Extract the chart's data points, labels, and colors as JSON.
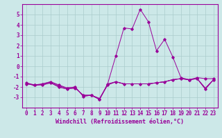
{
  "xlabel": "Windchill (Refroidissement éolien,°C)",
  "x_values": [
    0,
    1,
    2,
    3,
    4,
    5,
    6,
    7,
    8,
    9,
    10,
    11,
    12,
    13,
    14,
    15,
    16,
    17,
    18,
    19,
    20,
    21,
    22,
    23
  ],
  "line1": [
    -1.6,
    -1.8,
    -1.7,
    -1.5,
    -1.8,
    -2.1,
    -2.0,
    -2.9,
    -2.8,
    -3.2,
    -1.7,
    1.0,
    3.7,
    3.6,
    5.5,
    4.3,
    1.5,
    2.6,
    0.9,
    -1.1,
    -1.3,
    -1.1,
    -1.2,
    -1.2
  ],
  "line2": [
    -1.7,
    -1.8,
    -1.8,
    -1.6,
    -2.0,
    -2.2,
    -2.1,
    -2.8,
    -2.8,
    -3.2,
    -1.8,
    -1.5,
    -1.7,
    -1.7,
    -1.7,
    -1.7,
    -1.6,
    -1.5,
    -1.3,
    -1.2,
    -1.3,
    -1.2,
    -2.2,
    -1.3
  ],
  "line3": [
    -1.6,
    -1.9,
    -1.7,
    -1.5,
    -1.9,
    -2.1,
    -2.0,
    -2.9,
    -2.8,
    -3.2,
    -1.7,
    -1.5,
    -1.7,
    -1.7,
    -1.7,
    -1.7,
    -1.6,
    -1.5,
    -1.3,
    -1.2,
    -1.3,
    -1.2,
    -2.2,
    -1.3
  ],
  "line4": [
    -1.7,
    -1.8,
    -1.8,
    -1.6,
    -2.0,
    -2.2,
    -2.1,
    -2.8,
    -2.8,
    -3.1,
    -1.8,
    -1.5,
    -1.7,
    -1.7,
    -1.7,
    -1.7,
    -1.6,
    -1.5,
    -1.3,
    -1.2,
    -1.3,
    -1.2,
    -2.1,
    -1.3
  ],
  "line_color": "#990099",
  "bg_color": "#cce8e8",
  "grid_color": "#aacccc",
  "ylim": [
    -4,
    6
  ],
  "yticks": [
    -3,
    -2,
    -1,
    0,
    1,
    2,
    3,
    4,
    5
  ],
  "xticks": [
    0,
    1,
    2,
    3,
    4,
    5,
    6,
    7,
    8,
    9,
    10,
    11,
    12,
    13,
    14,
    15,
    16,
    17,
    18,
    19,
    20,
    21,
    22,
    23
  ],
  "tick_fontsize": 5.5,
  "xlabel_fontsize": 6.0
}
